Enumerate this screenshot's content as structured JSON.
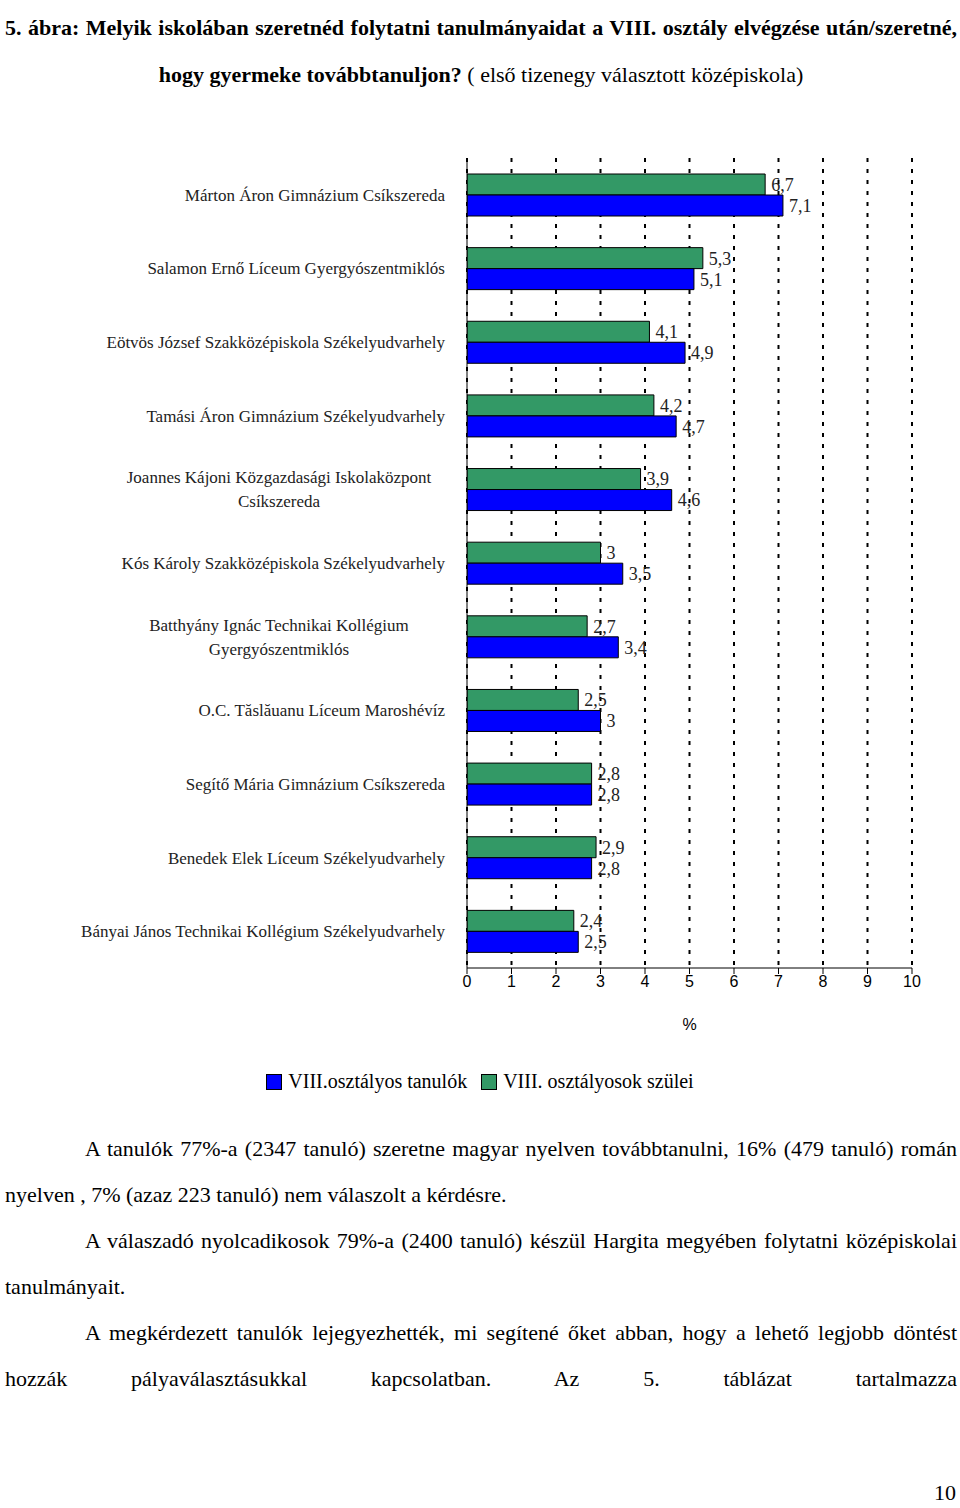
{
  "title": "5. ábra: Melyik iskolában szeretnéd folytatni tanulmányaidat a VIII. osztály elvégzése után/szeretné, hogy gyermeke továbbtanuljon?",
  "subtitle": "( első tizenegy választott középiskola)",
  "chart_data": {
    "type": "bar",
    "orientation": "horizontal",
    "categories": [
      "Márton Áron Gimnázium Csíkszereda",
      "Salamon Ernő Líceum Gyergyószentmiklós",
      "Eötvös József Szakközépiskola Székelyudvarhely",
      "Tamási Áron Gimnázium Székelyudvarhely",
      "Joannes Kájoni Közgazdasági Iskolaközpont Csíkszereda",
      "Kós Károly Szakközépiskola Székelyudvarhely",
      "Batthyány Ignác Technikai Kollégium Gyergyószentmiklós",
      "O.C. Tăslăuanu Líceum Maroshévíz",
      "Segítő Mária Gimnázium Csíkszereda",
      "Benedek Elek Líceum Székelyudvarhely",
      "Bányai János Technikai Kollégium Székelyudvarhely"
    ],
    "series": [
      {
        "name": "VIII.osztályos tanulók",
        "color": "#0000ff",
        "values": [
          7.1,
          5.1,
          4.9,
          4.7,
          4.6,
          3.5,
          3.4,
          3,
          2.8,
          2.8,
          2.5
        ],
        "value_labels": [
          "7,1",
          "5,1",
          "4,9",
          "4,7",
          "4,6",
          "3,5",
          "3,4",
          "3",
          "2,8",
          "2,8",
          "2,5"
        ]
      },
      {
        "name": "VIII. osztályosok szülei",
        "color": "#339966",
        "values": [
          6.7,
          5.3,
          4.1,
          4.2,
          3.9,
          3,
          2.7,
          2.5,
          2.8,
          2.9,
          2.4
        ],
        "value_labels": [
          "6,7",
          "5,3",
          "4,1",
          "4,2",
          "3,9",
          "3",
          "2,7",
          "2,5",
          "2,8",
          "2,9",
          "2,4"
        ]
      }
    ],
    "x_label": "%",
    "xlim": [
      0,
      10
    ],
    "xticks": [
      0,
      1,
      2,
      3,
      4,
      5,
      6,
      7,
      8,
      9,
      10
    ],
    "grid": true,
    "data_labels": true,
    "legend": "bottom"
  },
  "paragraphs": [
    "A tanulók 77%-a (2347 tanuló) szeretne magyar nyelven továbbtanulni, 16% (479 tanuló) román nyelven , 7% (azaz 223 tanuló) nem válaszolt a kérdésre.",
    "A válaszadó nyolcadikosok 79%-a (2400 tanuló) készül Hargita megyében folytatni középiskolai tanulmányait.",
    "A megkérdezett tanulók lejegyezhették, mi segítené őket abban, hogy a lehető legjobb döntést hozzák pályaválasztásukkal kapcsolatban. Az 5. táblázat tartalmazza"
  ],
  "page_number": 10
}
